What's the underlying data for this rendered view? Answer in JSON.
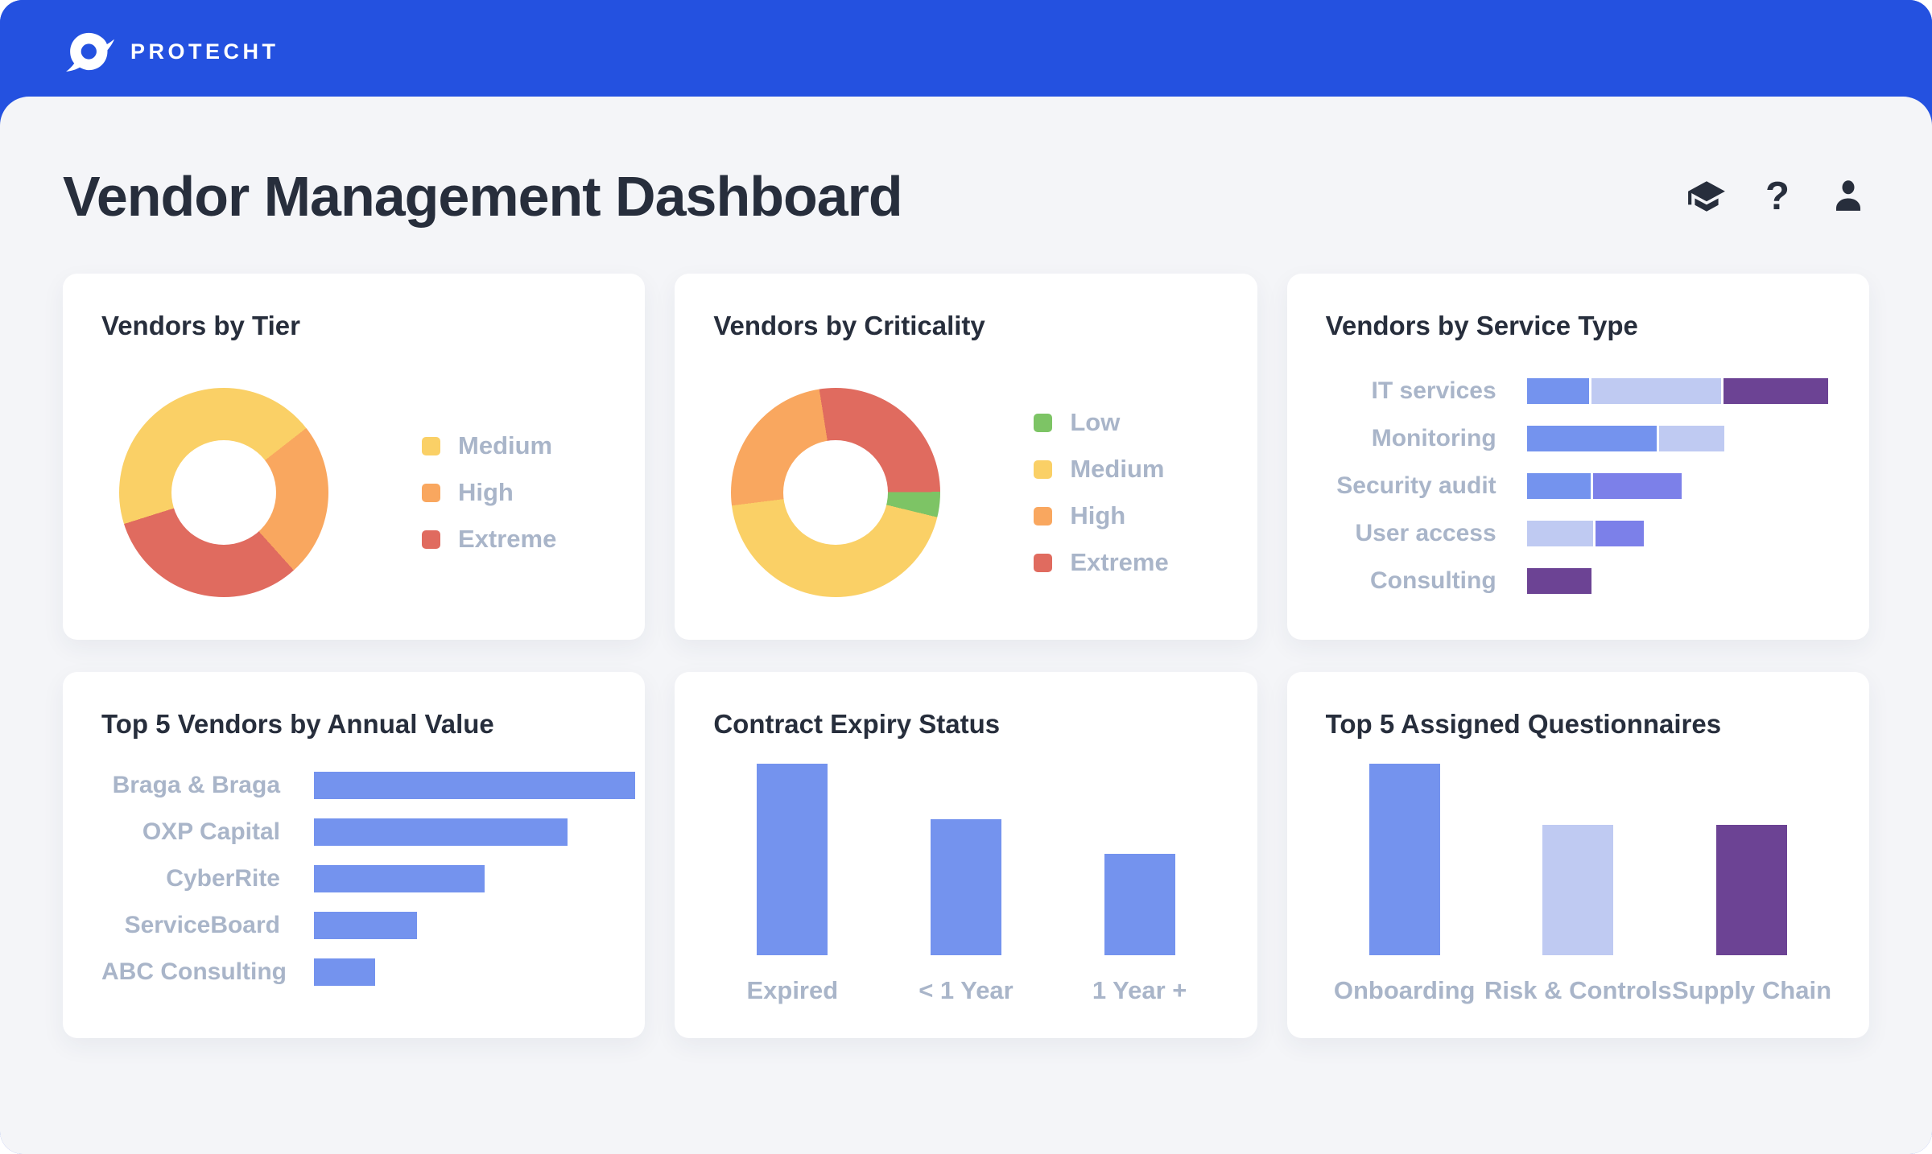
{
  "brand": {
    "name": "PROTECHT"
  },
  "header": {
    "title": "Vendor Management Dashboard",
    "help_glyph": "?",
    "icons": [
      "academy-cap",
      "help",
      "profile"
    ]
  },
  "colors": {
    "topbar_blue": "#2451E0",
    "page_background": "#F4F5F8",
    "card_background": "#FFFFFF",
    "heading_text": "#272E3C",
    "muted_label": "#A9B5C9",
    "cornflower_blue": "#7493EE",
    "lavender": "#BFCAF2",
    "violet": "#7C80E9",
    "purple": "#6C4394",
    "yellow": "#FAD066",
    "orange": "#F9A75F",
    "red": "#E06B5F",
    "green": "#7DC465"
  },
  "charts": {
    "tier": {
      "type": "donut",
      "title": "Vendors by Tier",
      "start_angle_deg": -107.5,
      "segments": [
        {
          "label": "Medium",
          "color": "#FAD066",
          "percent": 44.3
        },
        {
          "label": "High",
          "color": "#F9A75F",
          "percent": 23.9
        },
        {
          "label": "Extreme",
          "color": "#E06B5F",
          "percent": 31.8
        }
      ],
      "legend": [
        {
          "label": "Medium",
          "color": "#FAD066"
        },
        {
          "label": "High",
          "color": "#F9A75F"
        },
        {
          "label": "Extreme",
          "color": "#E06B5F"
        }
      ]
    },
    "criticality": {
      "type": "donut",
      "title": "Vendors by Criticality",
      "start_angle_deg": -9,
      "segments": [
        {
          "label": "Extreme",
          "color": "#E06B5F",
          "percent": 27.4
        },
        {
          "label": "Low",
          "color": "#7DC465",
          "percent": 3.9
        },
        {
          "label": "Medium",
          "color": "#FAD066",
          "percent": 44.2
        },
        {
          "label": "High",
          "color": "#F9A75F",
          "percent": 24.5
        }
      ],
      "legend": [
        {
          "label": "Low",
          "color": "#7DC465"
        },
        {
          "label": "Medium",
          "color": "#FAD066"
        },
        {
          "label": "High",
          "color": "#F9A75F"
        },
        {
          "label": "Extreme",
          "color": "#E06B5F"
        }
      ]
    },
    "service_type": {
      "type": "hbar-stacked",
      "title": "Vendors by Service Type",
      "rows": [
        {
          "label": "IT services",
          "segments": [
            {
              "color": "#7493EE",
              "percent": 21.1
            },
            {
              "color": "#BFCAF2",
              "percent": 43.8
            },
            {
              "color": "#6C4394",
              "percent": 35.1
            }
          ]
        },
        {
          "label": "Monitoring",
          "segments": [
            {
              "color": "#7493EE",
              "percent": 43.1
            },
            {
              "color": "#BFCAF2",
              "percent": 21.7
            }
          ]
        },
        {
          "label": "Security audit",
          "segments": [
            {
              "color": "#7493EE",
              "percent": 21.1
            },
            {
              "color": "#7C80E9",
              "percent": 29.4
            }
          ]
        },
        {
          "label": "User access",
          "segments": [
            {
              "color": "#BFCAF2",
              "percent": 21.9
            },
            {
              "color": "#7C80E9",
              "percent": 16.2
            }
          ]
        },
        {
          "label": "Consulting",
          "segments": [
            {
              "color": "#6C4394",
              "percent": 21.5
            }
          ]
        }
      ]
    },
    "annual_value": {
      "type": "hbar",
      "title": "Top 5 Vendors by Annual Value",
      "bar_color": "#7493EE",
      "rows": [
        {
          "label": "Braga & Braga",
          "percent": 100
        },
        {
          "label": "OXP Capital",
          "percent": 79
        },
        {
          "label": "CyberRite",
          "percent": 53
        },
        {
          "label": "ServiceBoard",
          "percent": 32
        },
        {
          "label": "ABC Consulting",
          "percent": 19
        }
      ]
    },
    "contract_expiry": {
      "type": "vbar",
      "title": "Contract Expiry Status",
      "bars": [
        {
          "label": "Expired",
          "color": "#7493EE",
          "percent": 100
        },
        {
          "label": "< 1 Year",
          "color": "#7493EE",
          "percent": 71
        },
        {
          "label": "1 Year +",
          "color": "#7493EE",
          "percent": 53
        }
      ]
    },
    "questionnaires": {
      "type": "vbar",
      "title": "Top 5 Assigned Questionnaires",
      "bars": [
        {
          "label": "Onboarding",
          "color": "#7493EE",
          "percent": 100
        },
        {
          "label": "Risk & Controls",
          "color": "#BFCAF2",
          "percent": 68
        },
        {
          "label": "Supply Chain",
          "color": "#6C4394",
          "percent": 68
        }
      ]
    }
  }
}
